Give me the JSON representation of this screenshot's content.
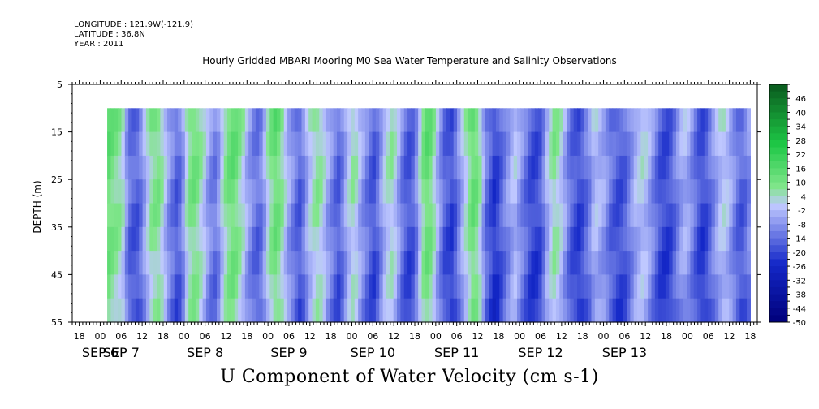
{
  "header": {
    "longitude": "LONGITUDE : 121.9W(-121.9)",
    "latitude": "LATITUDE : 36.8N",
    "year": "YEAR : 2011"
  },
  "chart_data": {
    "type": "heatmap",
    "title": "Hourly Gridded MBARI Mooring M0 Sea Water Temperature and Salinity Observations",
    "xlabel": "U Component of Water Velocity (cm s-1)",
    "ylabel": "DEPTH (m)",
    "y_ticks": [
      5,
      15,
      25,
      35,
      45,
      55
    ],
    "ylim": [
      55,
      5
    ],
    "y_reversed": true,
    "data_depth_range": [
      10,
      55
    ],
    "x_hour_ticks": [
      "18",
      "00",
      "06",
      "12",
      "18",
      "00",
      "06",
      "12",
      "18",
      "00",
      "06",
      "12",
      "18",
      "00",
      "06",
      "12",
      "18",
      "00",
      "06",
      "12",
      "18",
      "00",
      "06",
      "12",
      "18",
      "00",
      "06",
      "12",
      "18",
      "00",
      "06",
      "12",
      "18"
    ],
    "x_hour_tick_values": [
      -6,
      0,
      6,
      12,
      18,
      24,
      30,
      36,
      42,
      48,
      54,
      60,
      66,
      72,
      78,
      84,
      90,
      96,
      102,
      108,
      114,
      120,
      126,
      132,
      138,
      144,
      150,
      156,
      162,
      168,
      174,
      180,
      186
    ],
    "x_day_labels": [
      {
        "label": "SEP  6",
        "hour": 0
      },
      {
        "label": "SEP  7",
        "hour": 6
      },
      {
        "label": "SEP  8",
        "hour": 30
      },
      {
        "label": "SEP  9",
        "hour": 54
      },
      {
        "label": "SEP 10",
        "hour": 78
      },
      {
        "label": "SEP 11",
        "hour": 102
      },
      {
        "label": "SEP 12",
        "hour": 126
      },
      {
        "label": "SEP 13",
        "hour": 150
      }
    ],
    "xlim_hours": [
      -8,
      188
    ],
    "data_x_range_hours": [
      2,
      186
    ],
    "colorbar_labels": [
      46,
      40,
      34,
      28,
      22,
      16,
      10,
      4,
      -2,
      -8,
      -14,
      -20,
      -26,
      -32,
      -38,
      -44,
      -50
    ],
    "colorbar_range": [
      -50,
      52
    ],
    "colorbar_step": 3,
    "colors": {
      "low": "#00007a",
      "mid": "#bfc8ff",
      "high": "#0a5a1e"
    },
    "columns_hourly_mean_u": [
      14,
      12,
      10,
      8,
      4,
      -6,
      -12,
      -14,
      -14,
      -10,
      -4,
      2,
      8,
      10,
      10,
      6,
      0,
      -6,
      -10,
      -14,
      -12,
      -6,
      4,
      10,
      12,
      10,
      6,
      2,
      -4,
      -8,
      -10,
      -6,
      2,
      8,
      12,
      14,
      12,
      8,
      4,
      -2,
      -6,
      -10,
      -12,
      -10,
      -4,
      4,
      10,
      14,
      12,
      8,
      2,
      -4,
      -8,
      -12,
      -14,
      -10,
      -4,
      2,
      6,
      8,
      6,
      2,
      -4,
      -8,
      -12,
      -14,
      -10,
      -4,
      2,
      6,
      4,
      -2,
      -6,
      -10,
      -14,
      -16,
      -12,
      -6,
      0,
      4,
      6,
      2,
      -4,
      -10,
      -14,
      -16,
      -14,
      -8,
      2,
      10,
      14,
      12,
      6,
      -2,
      -8,
      -14,
      -16,
      -18,
      -14,
      -8,
      -2,
      4,
      10,
      14,
      12,
      6,
      -4,
      -12,
      -16,
      -20,
      -18,
      -14,
      -10,
      -6,
      -2,
      0,
      -4,
      -8,
      -12,
      -16,
      -18,
      -18,
      -16,
      -10,
      -2,
      4,
      8,
      6,
      2,
      -4,
      -10,
      -14,
      -16,
      -18,
      -16,
      -12,
      -8,
      -2,
      0,
      -2,
      -4,
      -8,
      -12,
      -14,
      -16,
      -16,
      -14,
      -10,
      -6,
      -2,
      0,
      2,
      0,
      -4,
      -8,
      -12,
      -16,
      -18,
      -18,
      -16,
      -12,
      -8,
      -4,
      -2,
      -4,
      -8,
      -12,
      -16,
      -18,
      -16,
      -12,
      -8,
      -4,
      0,
      2,
      0,
      -4,
      -8,
      -12,
      -14,
      -12,
      -8
    ]
  }
}
